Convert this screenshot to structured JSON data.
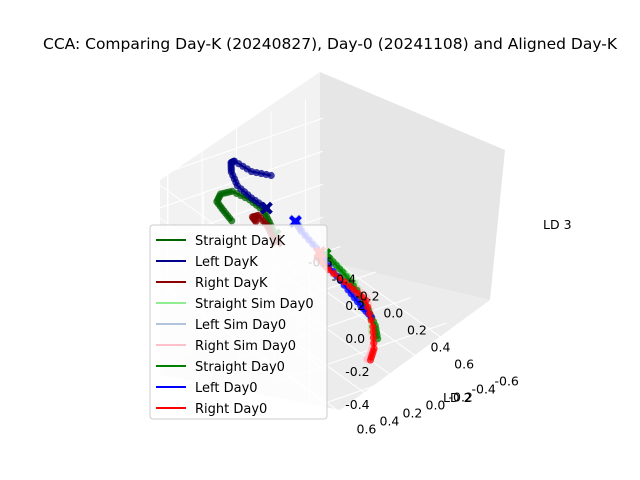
{
  "chart_data": {
    "type": "scatter",
    "projection": "3d",
    "title": "CCA: Comparing Day-K (20240827), Day-0 (20241108) and Aligned Day-K",
    "xlabel": "",
    "ylabel": "LD 2",
    "zlabel": "LD 3",
    "x_ticks": [
      "-0.6",
      "-0.4",
      "-0.2",
      "0.0",
      "0.2",
      "0.4",
      "0.6"
    ],
    "y_ticks": [
      "-0.6",
      "-0.4",
      "-0.2",
      "0.0",
      "0.2",
      "0.4",
      "0.6"
    ],
    "z_ticks": [
      "-0.4",
      "-0.2",
      "0.0",
      "0.2"
    ],
    "xlim": [
      -0.7,
      0.7
    ],
    "ylim": [
      -0.7,
      0.7
    ],
    "zlim": [
      -0.5,
      0.35
    ],
    "grid": true,
    "legend_placement": "lower-left",
    "series": [
      {
        "name": "Straight DayK",
        "color": "#006400",
        "marker": "circle",
        "points": [
          [
            -0.45,
            0.35,
            0.0
          ],
          [
            -0.42,
            0.45,
            0.1
          ],
          [
            -0.38,
            0.55,
            0.2
          ],
          [
            -0.3,
            0.6,
            0.3
          ],
          [
            -0.25,
            0.55,
            0.33
          ],
          [
            -0.2,
            0.45,
            0.28
          ],
          [
            -0.18,
            0.35,
            0.2
          ],
          [
            -0.18,
            0.3,
            0.12
          ],
          [
            -0.15,
            0.28,
            0.05
          ]
        ],
        "end": [
          -0.15,
          0.28,
          0.05
        ]
      },
      {
        "name": "Left DayK",
        "color": "#00008b",
        "marker": "circle",
        "points": [
          [
            -0.7,
            -0.25,
            0.0
          ],
          [
            -0.72,
            -0.1,
            0.05
          ],
          [
            -0.72,
            0.05,
            0.15
          ],
          [
            -0.65,
            0.15,
            0.2
          ],
          [
            -0.55,
            0.25,
            0.22
          ],
          [
            -0.45,
            0.3,
            0.2
          ],
          [
            -0.38,
            0.25,
            0.15
          ],
          [
            -0.35,
            0.15,
            0.08
          ]
        ],
        "end": [
          -0.35,
          0.15,
          0.08
        ]
      },
      {
        "name": "Right DayK",
        "color": "#8b0000",
        "marker": "circle",
        "points": [
          [
            -0.05,
            0.55,
            0.25
          ],
          [
            -0.03,
            0.6,
            0.3
          ],
          [
            0.0,
            0.58,
            0.32
          ],
          [
            0.02,
            0.52,
            0.25
          ],
          [
            0.0,
            0.45,
            0.15
          ],
          [
            -0.05,
            0.38,
            0.1
          ],
          [
            -0.1,
            0.32,
            0.05
          ]
        ],
        "end": [
          -0.1,
          0.32,
          0.05
        ]
      },
      {
        "name": "Straight Sim Day0",
        "color": "#90ee90",
        "marker": "circle",
        "points": [
          [
            0.05,
            0.05,
            -0.02
          ],
          [
            0.1,
            0.1,
            0.02
          ],
          [
            0.15,
            0.12,
            0.03
          ],
          [
            0.22,
            0.08,
            -0.02
          ],
          [
            0.25,
            0.0,
            -0.1
          ],
          [
            0.27,
            -0.08,
            -0.25
          ],
          [
            0.28,
            -0.12,
            -0.35
          ],
          [
            0.3,
            -0.1,
            -0.4
          ]
        ],
        "end": [
          0.05,
          0.05,
          -0.02
        ]
      },
      {
        "name": "Left Sim Day0",
        "color": "#b0c4de",
        "marker": "circle",
        "points": [
          [
            -0.3,
            -0.05,
            -0.02
          ],
          [
            -0.25,
            -0.02,
            0.0
          ],
          [
            -0.15,
            0.0,
            -0.03
          ],
          [
            -0.05,
            -0.05,
            -0.1
          ],
          [
            0.0,
            -0.15,
            -0.25
          ],
          [
            0.02,
            -0.25,
            -0.38
          ],
          [
            0.05,
            -0.3,
            -0.45
          ]
        ],
        "end": [
          -0.3,
          -0.05,
          -0.02
        ]
      },
      {
        "name": "Right Sim Day0",
        "color": "#ffc0cb",
        "marker": "circle",
        "points": [
          [
            0.15,
            0.2,
            0.05
          ],
          [
            0.25,
            0.3,
            0.1
          ],
          [
            0.4,
            0.35,
            0.12
          ],
          [
            0.55,
            0.3,
            0.1
          ],
          [
            0.6,
            0.25,
            0.05
          ],
          [
            0.62,
            0.22,
            -0.1
          ],
          [
            0.6,
            0.2,
            -0.25
          ],
          [
            0.55,
            0.18,
            -0.35
          ],
          [
            0.5,
            0.15,
            -0.4
          ]
        ],
        "end": [
          0.15,
          0.2,
          0.05
        ]
      },
      {
        "name": "Straight Day0",
        "color": "#008000",
        "marker": "circle",
        "points": [
          [
            0.05,
            0.05,
            -0.02
          ],
          [
            0.12,
            0.08,
            0.0
          ],
          [
            0.2,
            0.05,
            -0.05
          ],
          [
            0.25,
            -0.02,
            -0.15
          ],
          [
            0.27,
            -0.1,
            -0.28
          ],
          [
            0.28,
            -0.15,
            -0.38
          ],
          [
            0.3,
            -0.15,
            -0.45
          ]
        ],
        "end": [
          0.05,
          0.05,
          -0.02
        ]
      },
      {
        "name": "Left Day0",
        "color": "#0000ff",
        "marker": "circle",
        "points": [
          [
            -0.28,
            -0.03,
            -0.01
          ],
          [
            -0.2,
            0.0,
            -0.02
          ],
          [
            -0.1,
            -0.03,
            -0.08
          ],
          [
            -0.03,
            -0.1,
            -0.2
          ],
          [
            0.0,
            -0.2,
            -0.32
          ],
          [
            0.03,
            -0.28,
            -0.42
          ],
          [
            0.07,
            -0.33,
            -0.48
          ]
        ],
        "end": [
          -0.28,
          -0.03,
          -0.01
        ]
      },
      {
        "name": "Right Day0",
        "color": "#ff0000",
        "marker": "circle",
        "points": [
          [
            0.15,
            0.2,
            0.08
          ],
          [
            0.25,
            0.32,
            0.13
          ],
          [
            0.4,
            0.38,
            0.15
          ],
          [
            0.55,
            0.35,
            0.12
          ],
          [
            0.62,
            0.28,
            0.05
          ],
          [
            0.65,
            0.25,
            -0.1
          ],
          [
            0.63,
            0.22,
            -0.25
          ],
          [
            0.58,
            0.2,
            -0.35
          ]
        ],
        "end": [
          0.15,
          0.2,
          0.08
        ]
      }
    ]
  }
}
